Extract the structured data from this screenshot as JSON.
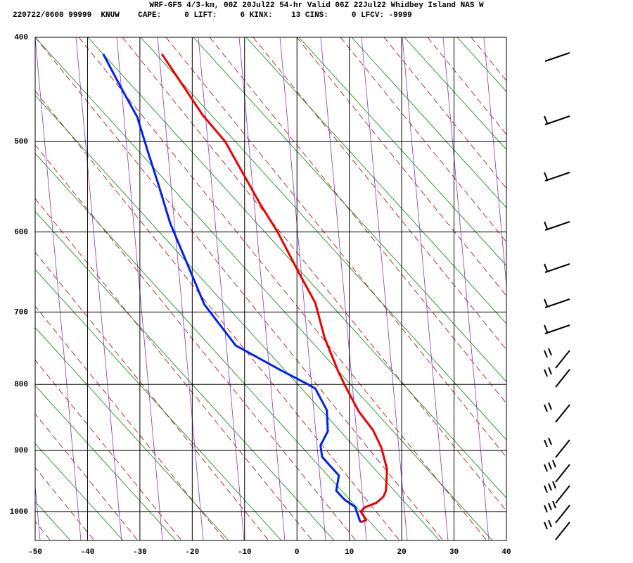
{
  "chart_data": {
    "type": "line",
    "title": "WRF-GFS 4/3-km, 00Z 20Jul22 54-hr Valid 06Z 22Jul22 Whidbey Island NAS W",
    "subtitle": "220722/0600 99999  KNUW    CAPE:     0 LIFT:     6 KINX:    13 CINS:     0 LFCV: -9999",
    "xlim": [
      -50,
      40
    ],
    "xticks": [
      -50,
      -40,
      -30,
      -20,
      -10,
      0,
      10,
      20,
      30,
      40
    ],
    "ylim": [
      400,
      1050
    ],
    "yticks": [
      400,
      500,
      600,
      700,
      800,
      900,
      1000
    ],
    "grid": true,
    "series": [
      {
        "color": "#ee0000",
        "x": [
          -25.8,
          -18.0,
          -13.7,
          -7.0,
          -3.7,
          0.4,
          3.5,
          5.3,
          7.8,
          9.4,
          11.8,
          14.5,
          16.1,
          17.2,
          17.0,
          16.5,
          15.2,
          12.9,
          12.2,
          13.2,
          12.1
        ],
        "y": [
          415,
          473,
          500,
          568,
          600,
          650,
          688,
          735,
          780,
          805,
          840,
          868,
          895,
          930,
          965,
          975,
          985,
          993,
          1000,
          1015,
          1018
        ]
      },
      {
        "color": "#0022ee",
        "x": [
          -37.0,
          -33.2,
          -30.5,
          -28.5,
          -26.5,
          -24.2,
          -20.2,
          -17.7,
          -11.7,
          -3.0,
          2.1,
          3.5,
          5.7,
          5.9,
          4.5,
          4.8,
          6.4,
          8.0,
          7.5,
          9.1,
          11.1,
          12.1
        ],
        "y": [
          415,
          450,
          475,
          510,
          545,
          590,
          650,
          690,
          745,
          780,
          800,
          806,
          838,
          870,
          892,
          910,
          925,
          940,
          965,
          980,
          992,
          1018
        ]
      }
    ]
  }
}
